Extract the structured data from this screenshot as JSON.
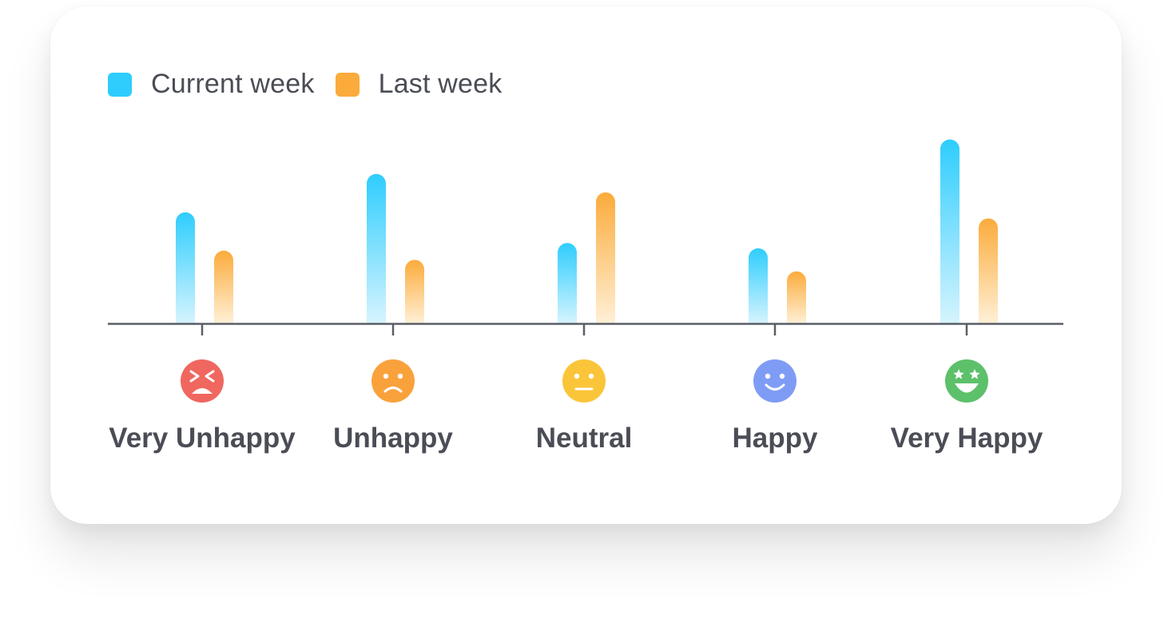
{
  "chart_data": {
    "type": "bar",
    "categories": [
      "Very Unhappy",
      "Unhappy",
      "Neutral",
      "Happy",
      "Very Happy"
    ],
    "category_icons": [
      "grinning-squint-angry-face-icon",
      "frowning-face-icon",
      "neutral-face-icon",
      "smiling-face-icon",
      "star-struck-face-icon"
    ],
    "category_icon_colors": [
      "#f0675f",
      "#f9a23c",
      "#fbc53a",
      "#7f9cf5",
      "#5cc16a"
    ],
    "series": [
      {
        "name": "Current week",
        "color": "#2ecdfd",
        "values": [
          145,
          195,
          105,
          98,
          240
        ]
      },
      {
        "name": "Last week",
        "color": "#fbab3b",
        "values": [
          95,
          83,
          171,
          68,
          137
        ]
      }
    ],
    "ylim": [
      0,
      250
    ],
    "title": "",
    "xlabel": "",
    "ylabel": "",
    "grid": false,
    "legend_position": "top-left"
  }
}
